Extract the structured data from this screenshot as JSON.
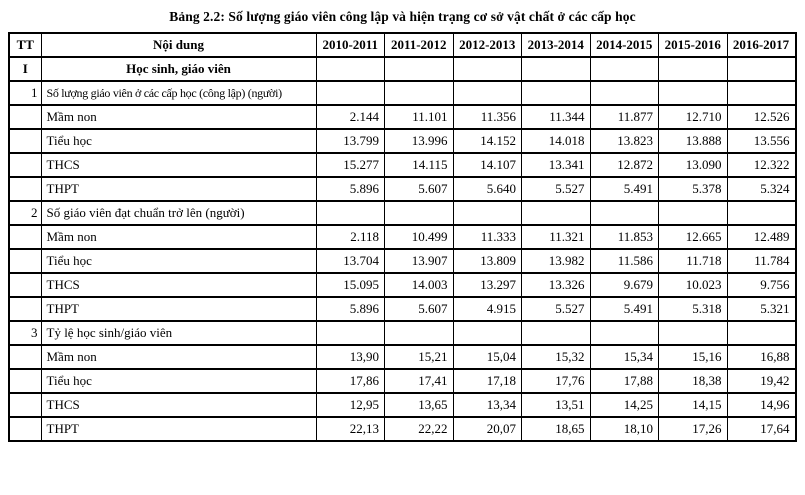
{
  "caption": "Bảng 2.2: Số lượng giáo viên công lập và hiện trạng cơ sở vật chất ở các cấp học",
  "headers": [
    "TT",
    "Nội dung",
    "2010-2011",
    "2011-2012",
    "2012-2013",
    "2013-2014",
    "2014-2015",
    "2015-2016",
    "2016-2017"
  ],
  "rows": [
    {
      "tt": "I",
      "label": "Học sinh, giáo viên",
      "values": [
        "",
        "",
        "",
        "",
        "",
        "",
        ""
      ]
    },
    {
      "tt": "1",
      "label": "Số lượng giáo viên ở các cấp học (công lập) (người)",
      "values": [
        "",
        "",
        "",
        "",
        "",
        "",
        ""
      ]
    },
    {
      "tt": "",
      "label": "Mầm non",
      "values": [
        "2.144",
        "11.101",
        "11.356",
        "11.344",
        "11.877",
        "12.710",
        "12.526"
      ]
    },
    {
      "tt": "",
      "label": "Tiểu học",
      "values": [
        "13.799",
        "13.996",
        "14.152",
        "14.018",
        "13.823",
        "13.888",
        "13.556"
      ]
    },
    {
      "tt": "",
      "label": "THCS",
      "values": [
        "15.277",
        "14.115",
        "14.107",
        "13.341",
        "12.872",
        "13.090",
        "12.322"
      ]
    },
    {
      "tt": "",
      "label": "THPT",
      "values": [
        "5.896",
        "5.607",
        "5.640",
        "5.527",
        "5.491",
        "5.378",
        "5.324"
      ]
    },
    {
      "tt": "2",
      "label": "Số giáo viên đạt chuẩn trở lên (người)",
      "values": [
        "",
        "",
        "",
        "",
        "",
        "",
        ""
      ]
    },
    {
      "tt": "",
      "label": "Mầm non",
      "values": [
        "2.118",
        "10.499",
        "11.333",
        "11.321",
        "11.853",
        "12.665",
        "12.489"
      ]
    },
    {
      "tt": "",
      "label": "Tiểu học",
      "values": [
        "13.704",
        "13.907",
        "13.809",
        "13.982",
        "11.586",
        "11.718",
        "11.784"
      ]
    },
    {
      "tt": "",
      "label": "THCS",
      "values": [
        "15.095",
        "14.003",
        "13.297",
        "13.326",
        "9.679",
        "10.023",
        "9.756"
      ]
    },
    {
      "tt": "",
      "label": "THPT",
      "values": [
        "5.896",
        "5.607",
        "4.915",
        "5.527",
        "5.491",
        "5.318",
        "5.321"
      ]
    },
    {
      "tt": "3",
      "label": "Tỷ lệ học sinh/giáo viên",
      "values": [
        "",
        "",
        "",
        "",
        "",
        "",
        ""
      ]
    },
    {
      "tt": "",
      "label": "Mầm non",
      "values": [
        "13,90",
        "15,21",
        "15,04",
        "15,32",
        "15,34",
        "15,16",
        "16,88"
      ]
    },
    {
      "tt": "",
      "label": "Tiểu học",
      "values": [
        "17,86",
        "17,41",
        "17,18",
        "17,76",
        "17,88",
        "18,38",
        "19,42"
      ]
    },
    {
      "tt": "",
      "label": "THCS",
      "values": [
        "12,95",
        "13,65",
        "13,34",
        "13,51",
        "14,25",
        "14,15",
        "14,96"
      ]
    },
    {
      "tt": "",
      "label": "THPT",
      "values": [
        "22,13",
        "22,22",
        "20,07",
        "18,65",
        "18,10",
        "17,26",
        "17,64"
      ]
    }
  ]
}
